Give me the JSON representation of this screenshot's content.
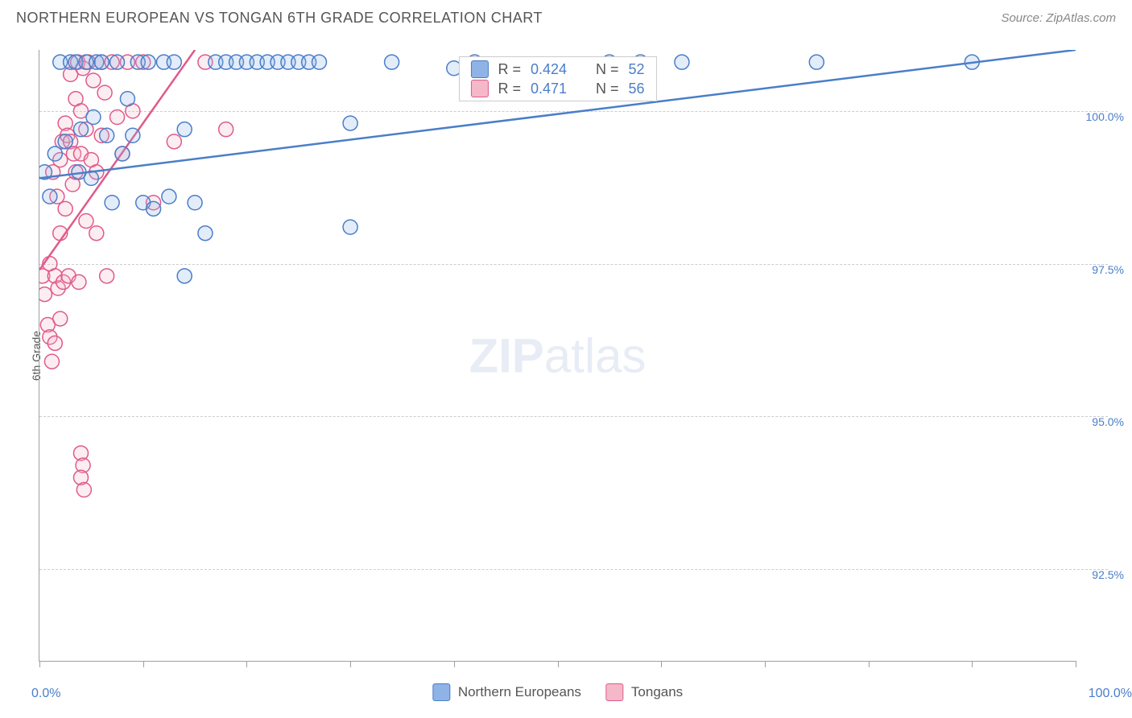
{
  "title": "NORTHERN EUROPEAN VS TONGAN 6TH GRADE CORRELATION CHART",
  "source": "Source: ZipAtlas.com",
  "ylabel": "6th Grade",
  "watermark_bold": "ZIP",
  "watermark_light": "atlas",
  "chart": {
    "type": "scatter",
    "xlim": [
      0,
      100
    ],
    "ylim": [
      91,
      101
    ],
    "x_min_label": "0.0%",
    "x_max_label": "100.0%",
    "x_tick_positions": [
      0,
      10,
      20,
      30,
      40,
      50,
      60,
      70,
      80,
      90,
      100
    ],
    "y_gridlines": [
      {
        "value": 100.0,
        "label": "100.0%"
      },
      {
        "value": 97.5,
        "label": "97.5%"
      },
      {
        "value": 95.0,
        "label": "95.0%"
      },
      {
        "value": 92.5,
        "label": "92.5%"
      }
    ],
    "background_color": "#ffffff",
    "grid_color": "#cccccc",
    "axis_color": "#9aa0a6",
    "marker_radius": 9,
    "marker_fill_opacity": 0.25,
    "marker_stroke_width": 1.5,
    "trend_line_width": 2.5,
    "series": {
      "northern": {
        "label": "Northern Europeans",
        "color_fill": "#8fb3e6",
        "color_stroke": "#4a7ec9",
        "trend": {
          "x1": 0,
          "y1": 98.9,
          "x2": 100,
          "y2": 101.0
        },
        "R": "0.424",
        "N": "52",
        "points": [
          {
            "x": 0.5,
            "y": 99.0
          },
          {
            "x": 1.0,
            "y": 98.6
          },
          {
            "x": 1.5,
            "y": 99.3
          },
          {
            "x": 2.0,
            "y": 100.8
          },
          {
            "x": 2.5,
            "y": 99.5
          },
          {
            "x": 3.0,
            "y": 100.8
          },
          {
            "x": 3.5,
            "y": 100.8
          },
          {
            "x": 3.8,
            "y": 99.0
          },
          {
            "x": 4.0,
            "y": 99.7
          },
          {
            "x": 4.5,
            "y": 100.8
          },
          {
            "x": 5.0,
            "y": 98.9
          },
          {
            "x": 5.2,
            "y": 99.9
          },
          {
            "x": 5.5,
            "y": 100.8
          },
          {
            "x": 6.0,
            "y": 100.8
          },
          {
            "x": 6.5,
            "y": 99.6
          },
          {
            "x": 7.0,
            "y": 98.5
          },
          {
            "x": 7.5,
            "y": 100.8
          },
          {
            "x": 8.0,
            "y": 99.3
          },
          {
            "x": 8.5,
            "y": 100.2
          },
          {
            "x": 9.0,
            "y": 99.6
          },
          {
            "x": 9.5,
            "y": 100.8
          },
          {
            "x": 10.0,
            "y": 98.5
          },
          {
            "x": 10.5,
            "y": 100.8
          },
          {
            "x": 11.0,
            "y": 98.4
          },
          {
            "x": 12.0,
            "y": 100.8
          },
          {
            "x": 12.5,
            "y": 98.6
          },
          {
            "x": 13.0,
            "y": 100.8
          },
          {
            "x": 14.0,
            "y": 99.7
          },
          {
            "x": 15.0,
            "y": 98.5
          },
          {
            "x": 16.0,
            "y": 98.0
          },
          {
            "x": 14.0,
            "y": 97.3
          },
          {
            "x": 17.0,
            "y": 100.8
          },
          {
            "x": 18.0,
            "y": 100.8
          },
          {
            "x": 19.0,
            "y": 100.8
          },
          {
            "x": 20.0,
            "y": 100.8
          },
          {
            "x": 21.0,
            "y": 100.8
          },
          {
            "x": 22.0,
            "y": 100.8
          },
          {
            "x": 23.0,
            "y": 100.8
          },
          {
            "x": 24.0,
            "y": 100.8
          },
          {
            "x": 25.0,
            "y": 100.8
          },
          {
            "x": 26.0,
            "y": 100.8
          },
          {
            "x": 27.0,
            "y": 100.8
          },
          {
            "x": 30.0,
            "y": 99.8
          },
          {
            "x": 30.0,
            "y": 98.1
          },
          {
            "x": 34.0,
            "y": 100.8
          },
          {
            "x": 40.0,
            "y": 100.7
          },
          {
            "x": 42.0,
            "y": 100.8
          },
          {
            "x": 55.0,
            "y": 100.8
          },
          {
            "x": 58.0,
            "y": 100.8
          },
          {
            "x": 62.0,
            "y": 100.8
          },
          {
            "x": 75.0,
            "y": 100.8
          },
          {
            "x": 90.0,
            "y": 100.8
          }
        ]
      },
      "tongan": {
        "label": "Tongans",
        "color_fill": "#f4b8c9",
        "color_stroke": "#e05a8a",
        "trend": {
          "x1": 0,
          "y1": 97.4,
          "x2": 15,
          "y2": 101.0
        },
        "R": "0.471",
        "N": "56",
        "points": [
          {
            "x": 0.3,
            "y": 97.3
          },
          {
            "x": 0.5,
            "y": 97.0
          },
          {
            "x": 0.8,
            "y": 96.5
          },
          {
            "x": 1.0,
            "y": 97.5
          },
          {
            "x": 1.0,
            "y": 96.3
          },
          {
            "x": 1.2,
            "y": 95.9
          },
          {
            "x": 1.3,
            "y": 99.0
          },
          {
            "x": 1.5,
            "y": 97.3
          },
          {
            "x": 1.5,
            "y": 96.2
          },
          {
            "x": 1.7,
            "y": 98.6
          },
          {
            "x": 1.8,
            "y": 97.1
          },
          {
            "x": 2.0,
            "y": 99.2
          },
          {
            "x": 2.0,
            "y": 98.0
          },
          {
            "x": 2.0,
            "y": 96.6
          },
          {
            "x": 2.2,
            "y": 99.5
          },
          {
            "x": 2.3,
            "y": 97.2
          },
          {
            "x": 2.5,
            "y": 99.8
          },
          {
            "x": 2.5,
            "y": 98.4
          },
          {
            "x": 2.7,
            "y": 99.6
          },
          {
            "x": 2.8,
            "y": 97.3
          },
          {
            "x": 3.0,
            "y": 100.6
          },
          {
            "x": 3.0,
            "y": 99.5
          },
          {
            "x": 3.2,
            "y": 98.8
          },
          {
            "x": 3.3,
            "y": 99.3
          },
          {
            "x": 3.5,
            "y": 100.2
          },
          {
            "x": 3.5,
            "y": 99.0
          },
          {
            "x": 3.7,
            "y": 100.8
          },
          {
            "x": 3.8,
            "y": 97.2
          },
          {
            "x": 4.0,
            "y": 100.0
          },
          {
            "x": 4.0,
            "y": 99.3
          },
          {
            "x": 4.2,
            "y": 100.7
          },
          {
            "x": 4.5,
            "y": 99.7
          },
          {
            "x": 4.5,
            "y": 98.2
          },
          {
            "x": 4.7,
            "y": 100.8
          },
          {
            "x": 5.0,
            "y": 99.2
          },
          {
            "x": 5.2,
            "y": 100.5
          },
          {
            "x": 5.5,
            "y": 99.0
          },
          {
            "x": 5.5,
            "y": 98.0
          },
          {
            "x": 6.0,
            "y": 100.8
          },
          {
            "x": 6.0,
            "y": 99.6
          },
          {
            "x": 6.3,
            "y": 100.3
          },
          {
            "x": 6.5,
            "y": 97.3
          },
          {
            "x": 7.0,
            "y": 100.8
          },
          {
            "x": 7.5,
            "y": 99.9
          },
          {
            "x": 8.0,
            "y": 99.3
          },
          {
            "x": 8.5,
            "y": 100.8
          },
          {
            "x": 9.0,
            "y": 100.0
          },
          {
            "x": 10.0,
            "y": 100.8
          },
          {
            "x": 11.0,
            "y": 98.5
          },
          {
            "x": 13.0,
            "y": 99.5
          },
          {
            "x": 16.0,
            "y": 100.8
          },
          {
            "x": 18.0,
            "y": 99.7
          },
          {
            "x": 4.0,
            "y": 94.4
          },
          {
            "x": 4.2,
            "y": 94.2
          },
          {
            "x": 4.0,
            "y": 94.0
          },
          {
            "x": 4.3,
            "y": 93.8
          }
        ]
      }
    },
    "legend_top": {
      "R_label": "R =",
      "N_label": "N ="
    }
  }
}
